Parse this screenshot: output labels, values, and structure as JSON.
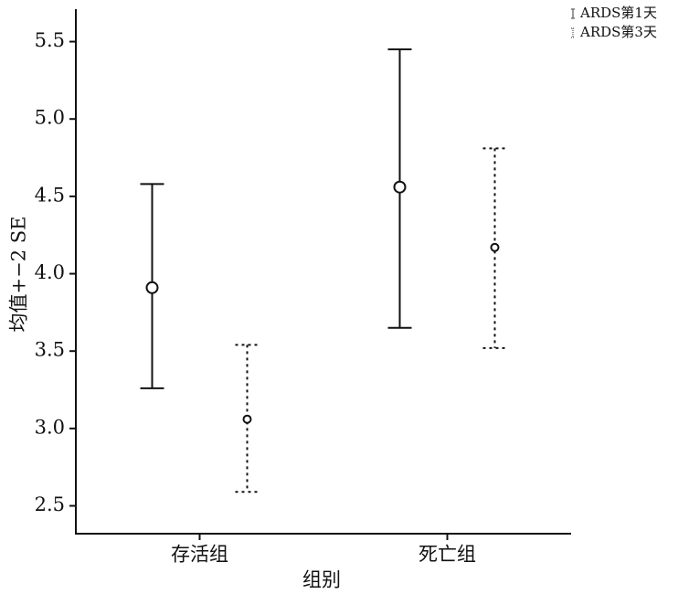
{
  "chart_data": {
    "type": "errorbar",
    "x_label": "组别",
    "y_label": "均值+−2 SE",
    "categories": [
      "存活组",
      "死亡组"
    ],
    "series": [
      {
        "name": "ARDS第1天",
        "color": "#111111",
        "line_style": "solid",
        "values": [
          3.91,
          4.56
        ],
        "lower": [
          3.26,
          3.65
        ],
        "upper": [
          4.58,
          5.45
        ]
      },
      {
        "name": "ARDS第3天",
        "color": "#111111",
        "line_style": "dotted",
        "values": [
          3.06,
          4.17
        ],
        "lower": [
          2.59,
          3.52
        ],
        "upper": [
          3.54,
          4.81
        ]
      }
    ],
    "ylim": [
      2.32,
      5.71
    ],
    "yticks": [
      2.5,
      {
        "value": 3,
        "label": "3.0"
      },
      3.5,
      {
        "value": 4,
        "label": "4.0"
      },
      4.5,
      {
        "value": 5,
        "label": "5.0"
      },
      5.5
    ],
    "grid": false,
    "legend": "top-right"
  }
}
